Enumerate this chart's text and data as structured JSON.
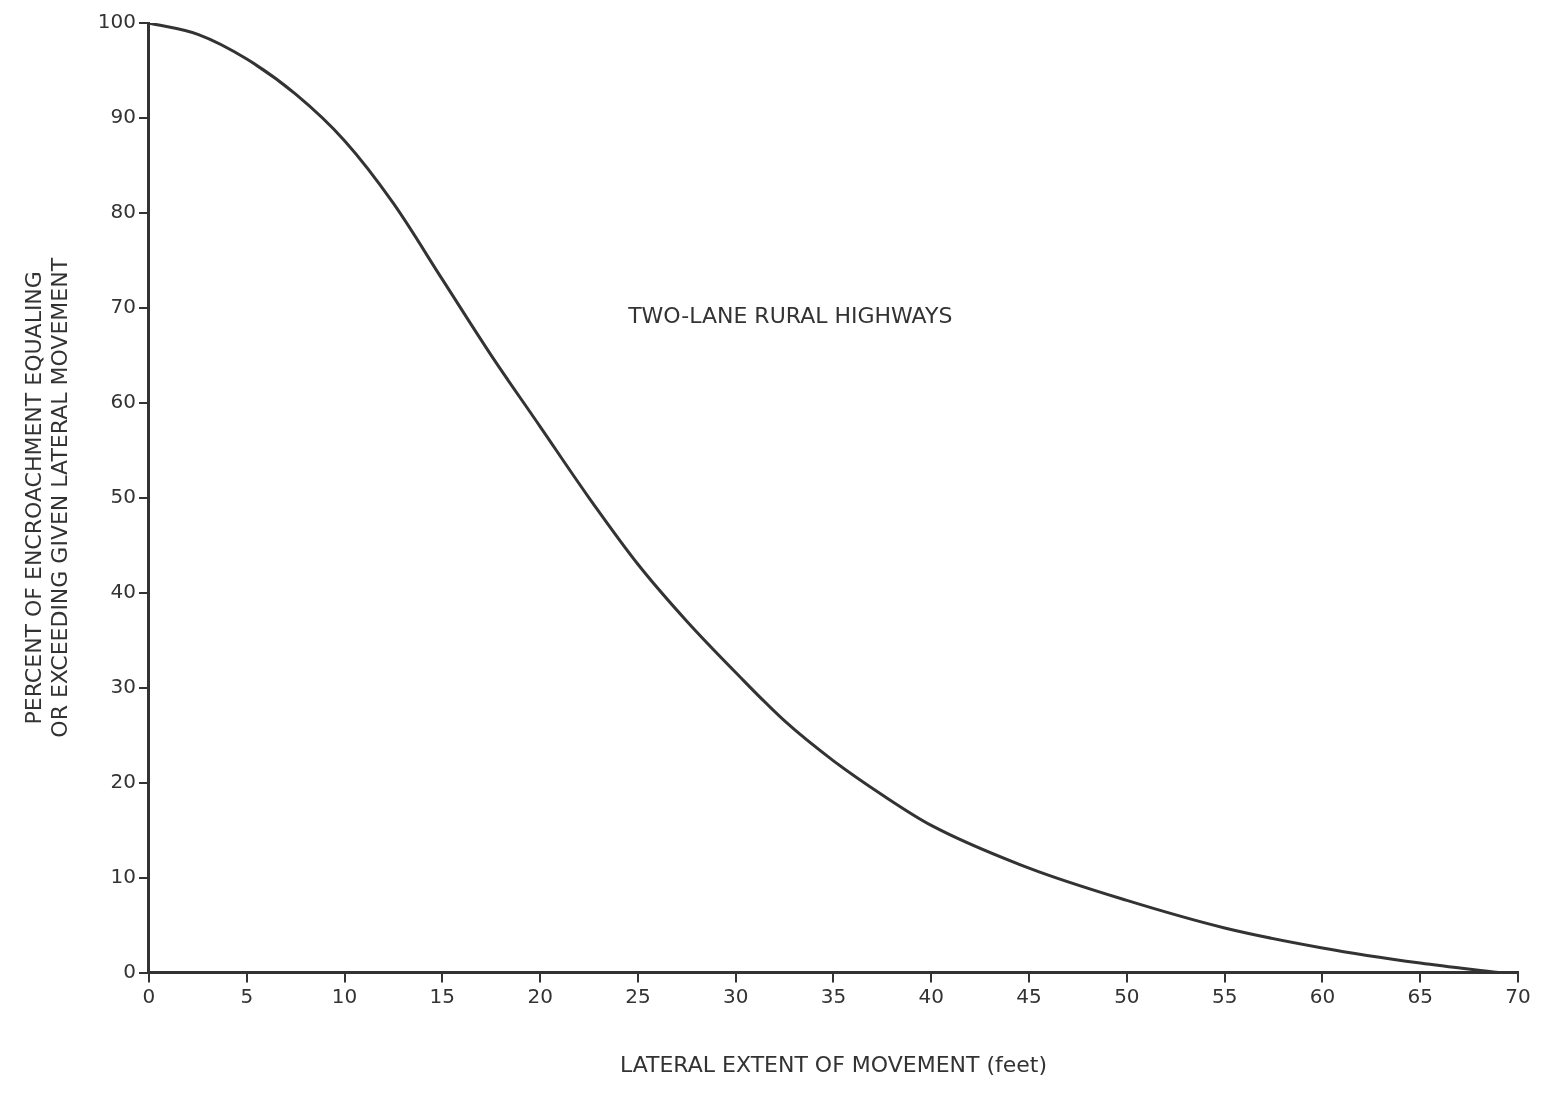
{
  "chart_data": {
    "type": "line",
    "xlabel": "LATERAL EXTENT OF MOVEMENT (feet)",
    "ylabel": "PERCENT OF ENCROACHMENT EQUALING\nOR EXCEEDING GIVEN LATERAL MOVEMENT",
    "annotations": [
      "TWO-LANE RURAL HIGHWAYS"
    ],
    "series": [
      {
        "color": "#333333",
        "x": [
          0,
          2.5,
          5,
          7.5,
          10,
          12.5,
          15,
          17.5,
          20,
          22.5,
          25,
          27.5,
          30,
          32.5,
          35,
          37.5,
          40,
          45,
          50,
          55,
          60,
          65,
          69
        ],
        "values": [
          100,
          98.8,
          96.2,
          92.5,
          87.6,
          81,
          73,
          65,
          57.5,
          50,
          43,
          37,
          31.6,
          26.5,
          22.3,
          18.7,
          15.5,
          11,
          7.6,
          4.7,
          2.6,
          1,
          0
        ]
      }
    ],
    "xlim": [
      0,
      70
    ],
    "xticks": [
      0,
      5,
      10,
      15,
      20,
      25,
      30,
      35,
      40,
      45,
      50,
      55,
      60,
      65,
      70
    ],
    "ylim": [
      0,
      100
    ],
    "yticks": [
      0,
      10,
      20,
      30,
      40,
      50,
      60,
      70,
      80,
      90,
      100
    ],
    "grid": false,
    "legend": false,
    "marker": "none",
    "line_style": "solid"
  }
}
